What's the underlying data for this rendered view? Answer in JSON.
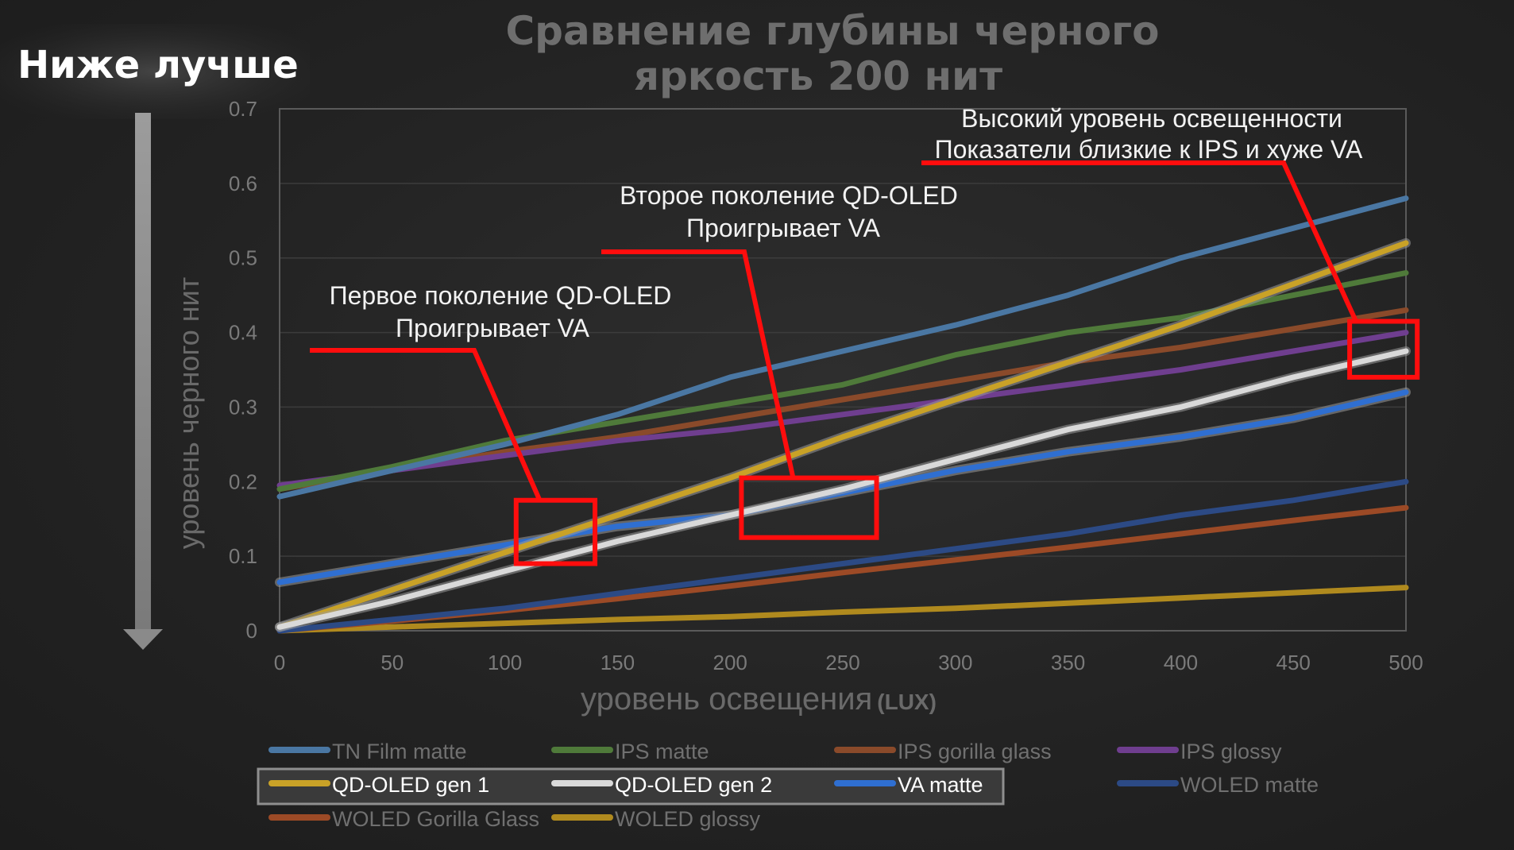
{
  "badge": {
    "text": "Ниже лучше"
  },
  "chart_data": {
    "type": "line",
    "title_line1": "Сравнение глубины черного",
    "title_line2": "яркость 200 нит",
    "xlabel": "уровень освещения",
    "xlabel_unit": "(LUX)",
    "ylabel": "уровень черного нит",
    "xlim": [
      0,
      500
    ],
    "ylim": [
      0,
      0.7
    ],
    "x_ticks": [
      0,
      50,
      100,
      150,
      200,
      250,
      300,
      350,
      400,
      450,
      500
    ],
    "y_ticks": [
      0,
      0.1,
      0.2,
      0.3,
      0.4,
      0.5,
      0.6,
      0.7
    ],
    "grid": true,
    "legend_placement": "bottom",
    "series": [
      {
        "name": "TN Film matte",
        "color": "#4a77a3",
        "points": [
          [
            0,
            0.18
          ],
          [
            50,
            0.215
          ],
          [
            100,
            0.25
          ],
          [
            150,
            0.29
          ],
          [
            200,
            0.34
          ],
          [
            250,
            0.375
          ],
          [
            300,
            0.41
          ],
          [
            350,
            0.45
          ],
          [
            400,
            0.5
          ],
          [
            450,
            0.54
          ],
          [
            500,
            0.58
          ]
        ]
      },
      {
        "name": "IPS matte",
        "color": "#4f7a3a",
        "points": [
          [
            0,
            0.19
          ],
          [
            50,
            0.22
          ],
          [
            100,
            0.255
          ],
          [
            150,
            0.28
          ],
          [
            200,
            0.305
          ],
          [
            250,
            0.33
          ],
          [
            300,
            0.37
          ],
          [
            350,
            0.4
          ],
          [
            400,
            0.42
          ],
          [
            450,
            0.45
          ],
          [
            500,
            0.48
          ]
        ]
      },
      {
        "name": "IPS gorilla glass",
        "color": "#8a4a2a",
        "points": [
          [
            0,
            0.19
          ],
          [
            50,
            0.215
          ],
          [
            100,
            0.24
          ],
          [
            150,
            0.26
          ],
          [
            200,
            0.285
          ],
          [
            250,
            0.31
          ],
          [
            300,
            0.335
          ],
          [
            350,
            0.36
          ],
          [
            400,
            0.38
          ],
          [
            450,
            0.405
          ],
          [
            500,
            0.43
          ]
        ]
      },
      {
        "name": "IPS glossy",
        "color": "#6f3e8f",
        "points": [
          [
            0,
            0.195
          ],
          [
            50,
            0.215
          ],
          [
            100,
            0.235
          ],
          [
            150,
            0.255
          ],
          [
            200,
            0.27
          ],
          [
            250,
            0.29
          ],
          [
            300,
            0.31
          ],
          [
            350,
            0.33
          ],
          [
            400,
            0.35
          ],
          [
            450,
            0.375
          ],
          [
            500,
            0.4
          ]
        ]
      },
      {
        "name": "QD-OLED gen 1",
        "color": "#c9a227",
        "points": [
          [
            0,
            0.005
          ],
          [
            50,
            0.055
          ],
          [
            100,
            0.105
          ],
          [
            150,
            0.155
          ],
          [
            200,
            0.205
          ],
          [
            250,
            0.26
          ],
          [
            300,
            0.31
          ],
          [
            350,
            0.36
          ],
          [
            400,
            0.41
          ],
          [
            450,
            0.465
          ],
          [
            500,
            0.52
          ]
        ]
      },
      {
        "name": "QD-OLED gen 2",
        "color": "#d9d9d9",
        "points": [
          [
            0,
            0.005
          ],
          [
            50,
            0.04
          ],
          [
            100,
            0.08
          ],
          [
            150,
            0.12
          ],
          [
            200,
            0.155
          ],
          [
            250,
            0.19
          ],
          [
            300,
            0.23
          ],
          [
            350,
            0.27
          ],
          [
            400,
            0.3
          ],
          [
            450,
            0.34
          ],
          [
            500,
            0.375
          ]
        ]
      },
      {
        "name": "VA matte",
        "color": "#2f6fd1",
        "points": [
          [
            0,
            0.065
          ],
          [
            50,
            0.09
          ],
          [
            100,
            0.115
          ],
          [
            150,
            0.14
          ],
          [
            200,
            0.155
          ],
          [
            250,
            0.185
          ],
          [
            300,
            0.215
          ],
          [
            350,
            0.24
          ],
          [
            400,
            0.26
          ],
          [
            450,
            0.285
          ],
          [
            500,
            0.32
          ]
        ]
      },
      {
        "name": "WOLED matte",
        "color": "#2c4a85",
        "points": [
          [
            0,
            0.0
          ],
          [
            50,
            0.015
          ],
          [
            100,
            0.03
          ],
          [
            150,
            0.05
          ],
          [
            200,
            0.07
          ],
          [
            250,
            0.09
          ],
          [
            300,
            0.11
          ],
          [
            350,
            0.13
          ],
          [
            400,
            0.155
          ],
          [
            450,
            0.175
          ],
          [
            500,
            0.2
          ]
        ]
      },
      {
        "name": "WOLED Gorilla Glass",
        "color": "#9c4a26",
        "points": [
          [
            0,
            0.0
          ],
          [
            50,
            0.013
          ],
          [
            100,
            0.027
          ],
          [
            150,
            0.043
          ],
          [
            200,
            0.06
          ],
          [
            250,
            0.078
          ],
          [
            300,
            0.095
          ],
          [
            350,
            0.112
          ],
          [
            400,
            0.13
          ],
          [
            450,
            0.148
          ],
          [
            500,
            0.165
          ]
        ]
      },
      {
        "name": "WOLED glossy",
        "color": "#b08a1e",
        "points": [
          [
            0,
            0.0
          ],
          [
            50,
            0.005
          ],
          [
            100,
            0.01
          ],
          [
            150,
            0.015
          ],
          [
            200,
            0.019
          ],
          [
            250,
            0.025
          ],
          [
            300,
            0.03
          ],
          [
            350,
            0.037
          ],
          [
            400,
            0.044
          ],
          [
            450,
            0.051
          ],
          [
            500,
            0.058
          ]
        ]
      }
    ],
    "highlighted_series": [
      "QD-OLED gen 1",
      "QD-OLED gen 2",
      "VA matte"
    ],
    "annotations": [
      {
        "line1": "Первое поколение QD-OLED",
        "line2": "Проигрывает VA",
        "box_x": [
          105,
          140
        ],
        "box_y": [
          0.09,
          0.175
        ]
      },
      {
        "line1": "Второе поколение QD-OLED",
        "line2": "Проигрывает VA",
        "box_x": [
          205,
          265
        ],
        "box_y": [
          0.125,
          0.205
        ]
      },
      {
        "line1": "Высокий уровень освещенности",
        "line2": "Показатели близкие к IPS и хуже VA",
        "box_x": [
          475,
          505
        ],
        "box_y": [
          0.34,
          0.415
        ]
      }
    ]
  }
}
